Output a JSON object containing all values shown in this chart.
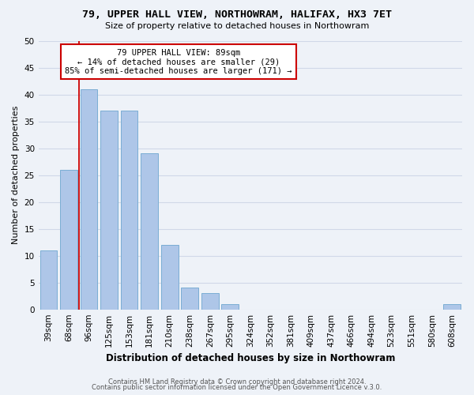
{
  "title": "79, UPPER HALL VIEW, NORTHOWRAM, HALIFAX, HX3 7ET",
  "subtitle": "Size of property relative to detached houses in Northowram",
  "xlabel": "Distribution of detached houses by size in Northowram",
  "ylabel": "Number of detached properties",
  "footer_line1": "Contains HM Land Registry data © Crown copyright and database right 2024.",
  "footer_line2": "Contains public sector information licensed under the Open Government Licence v.3.0.",
  "bar_labels": [
    "39sqm",
    "68sqm",
    "96sqm",
    "125sqm",
    "153sqm",
    "181sqm",
    "210sqm",
    "238sqm",
    "267sqm",
    "295sqm",
    "324sqm",
    "352sqm",
    "381sqm",
    "409sqm",
    "437sqm",
    "466sqm",
    "494sqm",
    "523sqm",
    "551sqm",
    "580sqm",
    "608sqm"
  ],
  "bar_values": [
    11,
    26,
    41,
    37,
    37,
    29,
    12,
    4,
    3,
    1,
    0,
    0,
    0,
    0,
    0,
    0,
    0,
    0,
    0,
    0,
    1
  ],
  "bar_color": "#aec6e8",
  "bar_edge_color": "#7aadd4",
  "grid_color": "#d0d8e8",
  "property_line_color": "#cc0000",
  "annotation_text_line1": "79 UPPER HALL VIEW: 89sqm",
  "annotation_text_line2": "← 14% of detached houses are smaller (29)",
  "annotation_text_line3": "85% of semi-detached houses are larger (171) →",
  "annotation_box_color": "#ffffff",
  "annotation_box_edge": "#cc0000",
  "ylim": [
    0,
    50
  ],
  "yticks": [
    0,
    5,
    10,
    15,
    20,
    25,
    30,
    35,
    40,
    45,
    50
  ],
  "background_color": "#eef2f8",
  "title_fontsize": 9.5,
  "subtitle_fontsize": 8.0,
  "xlabel_fontsize": 8.5,
  "ylabel_fontsize": 8.0,
  "tick_fontsize": 7.5,
  "annotation_fontsize": 7.5,
  "footer_fontsize": 6.0
}
